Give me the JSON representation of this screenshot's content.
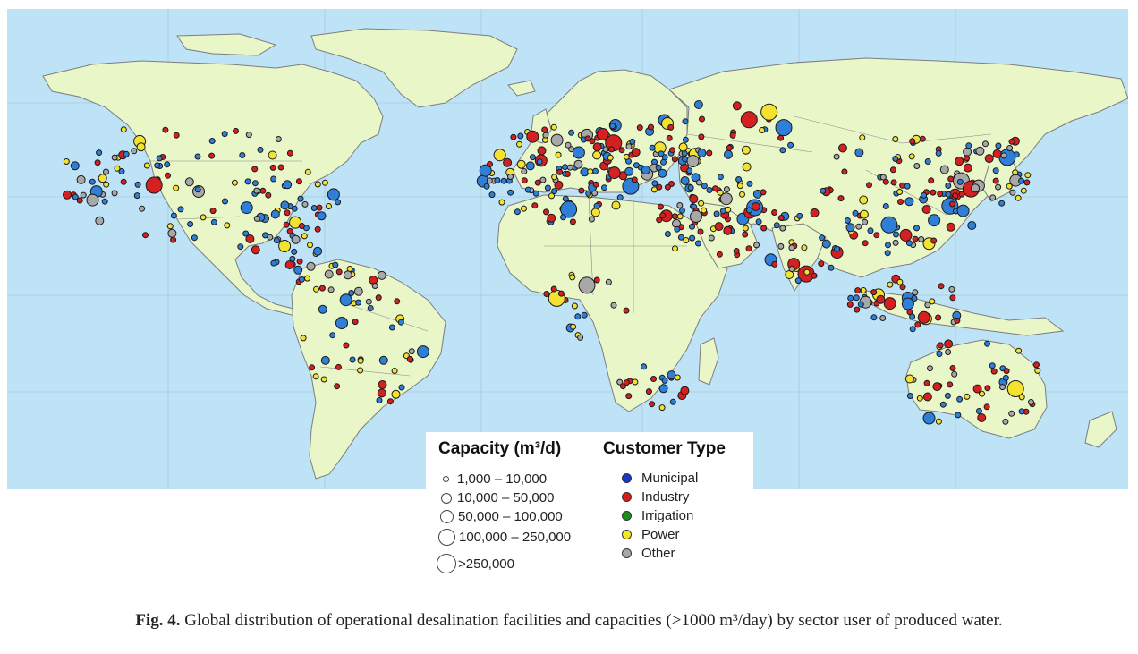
{
  "legend": {
    "capacity": {
      "title": "Capacity (m³/d)",
      "items": [
        {
          "label": "1,000 – 10,000"
        },
        {
          "label": "10,000 – 50,000"
        },
        {
          "label": "50,000 – 100,000"
        },
        {
          "label": "100,000 – 250,000"
        },
        {
          "label": ">250,000"
        }
      ]
    },
    "customer_type": {
      "title": "Customer Type",
      "items": [
        {
          "label": "Municipal",
          "color": "#1a36c8"
        },
        {
          "label": "Industry",
          "color": "#d81c1c"
        },
        {
          "label": "Irrigation",
          "color": "#1b8f1b"
        },
        {
          "label": "Power",
          "color": "#f5e61e"
        },
        {
          "label": "Other",
          "color": "#a8a8a8"
        }
      ]
    }
  },
  "caption": {
    "label": "Fig. 4.",
    "text": "Global distribution of operational desalination facilities and capacities (>1000 m³/day) by sector user of produced water."
  },
  "map_colors": {
    "ocean": "#bfe3f6",
    "land": "#e8f6c8",
    "border": "#8a8a8a",
    "municipal_marker": "#2f7fd8",
    "industry_marker": "#d42020",
    "power_marker": "#f3e330",
    "other_marker": "#a8a8a8"
  }
}
